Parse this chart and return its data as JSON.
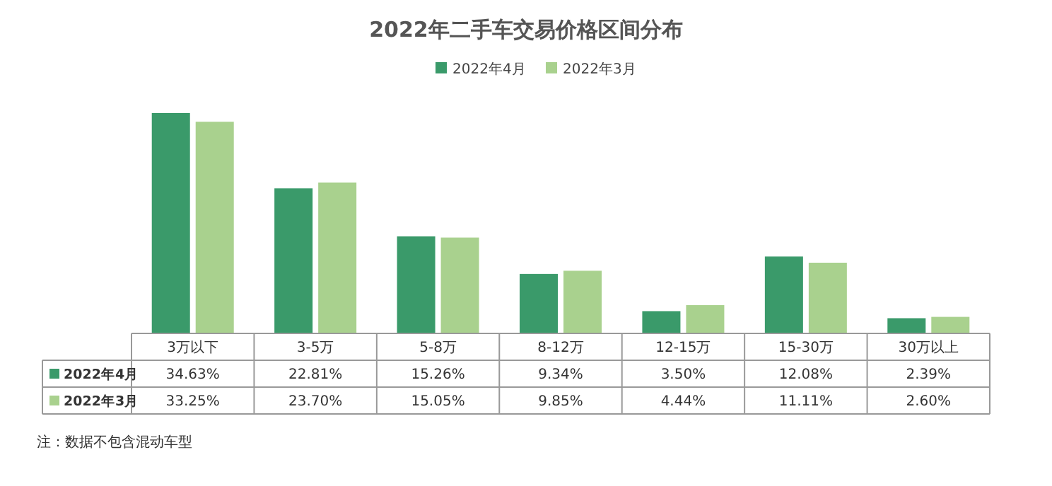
{
  "chart_data": {
    "type": "bar",
    "title": "2022年二手车交易价格区间分布",
    "categories": [
      "3万以下",
      "3-5万",
      "5-8万",
      "8-12万",
      "12-15万",
      "15-30万",
      "30万以上"
    ],
    "series": [
      {
        "name": "2022年4月",
        "color": "#3a9a6a",
        "values": [
          34.63,
          22.81,
          15.26,
          9.34,
          3.5,
          12.08,
          2.39
        ],
        "value_labels": [
          "34.63%",
          "22.81%",
          "15.26%",
          "9.34%",
          "3.50%",
          "12.08%",
          "2.39%"
        ]
      },
      {
        "name": "2022年3月",
        "color": "#a9d18e",
        "values": [
          33.25,
          23.7,
          15.05,
          9.85,
          4.44,
          11.11,
          2.6
        ],
        "value_labels": [
          "33.25%",
          "23.70%",
          "15.05%",
          "9.85%",
          "4.44%",
          "11.11%",
          "2.60%"
        ]
      }
    ],
    "legend": "top",
    "annotations": [
      "注：数据不包含混动车型"
    ]
  }
}
